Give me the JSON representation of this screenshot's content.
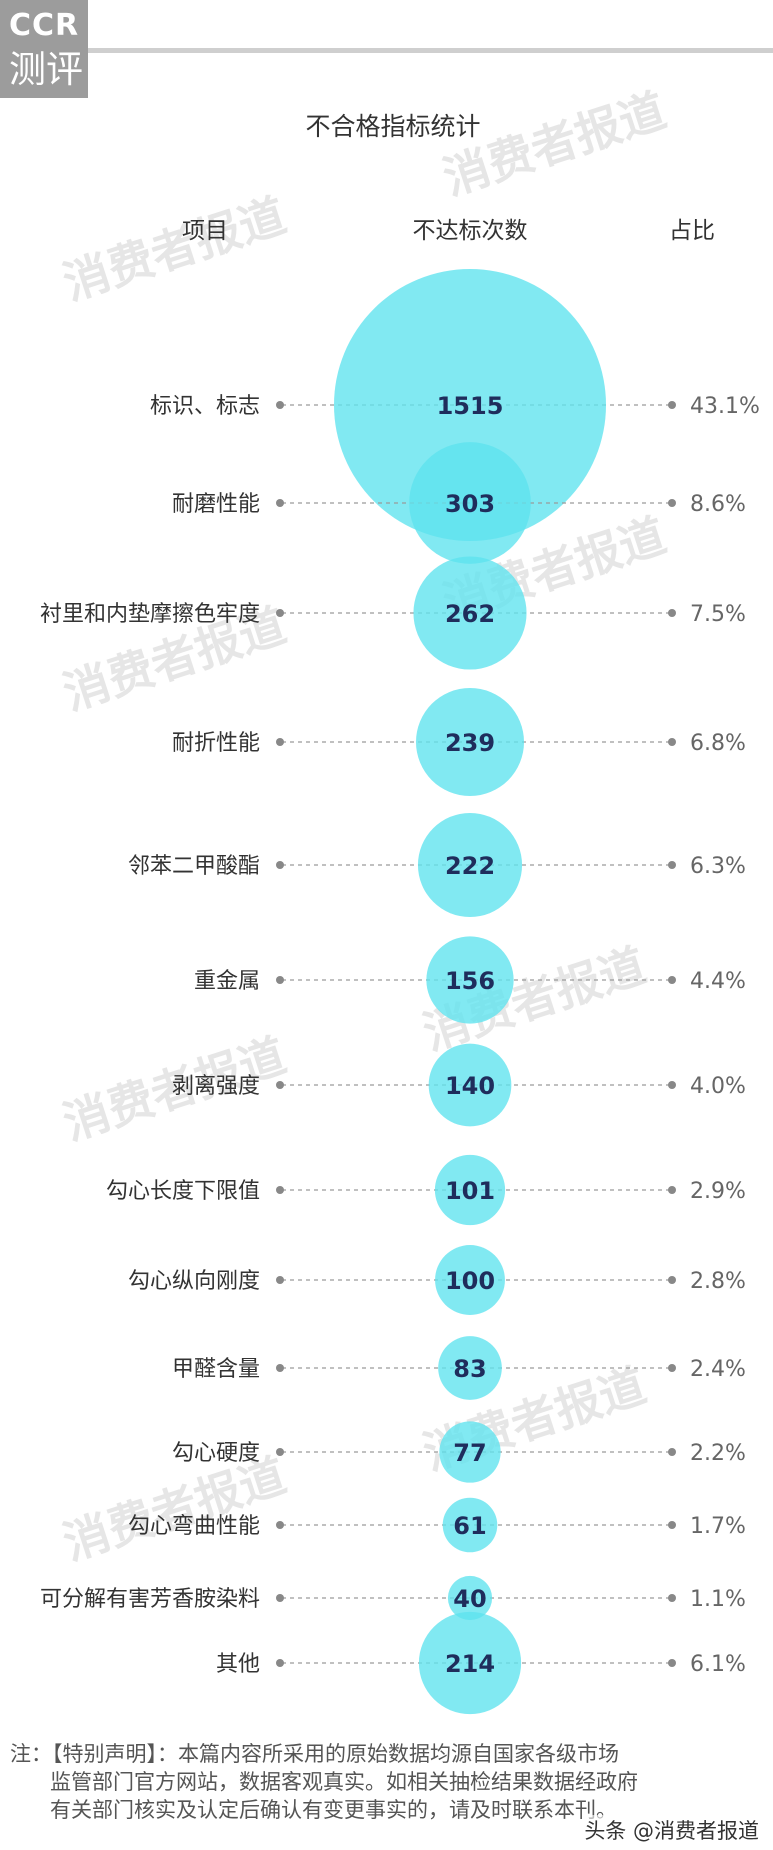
{
  "brand": {
    "logo_line1": "CCR",
    "logo_line2": "测评"
  },
  "watermark": "消费者报道",
  "chart_data": {
    "type": "bubble",
    "title": "不合格指标统计",
    "columns": {
      "item": "项目",
      "count": "不达标次数",
      "share": "占比"
    },
    "categories": [
      "标识、标志",
      "耐磨性能",
      "衬里和内垫摩擦色牢度",
      "耐折性能",
      "邻苯二甲酸酯",
      "重金属",
      "剥离强度",
      "勾心长度下限值",
      "勾心纵向刚度",
      "甲醛含量",
      "勾心硬度",
      "勾心弯曲性能",
      "可分解有害芳香胺染料",
      "其他"
    ],
    "values": [
      1515,
      303,
      262,
      239,
      222,
      156,
      140,
      101,
      100,
      83,
      77,
      61,
      40,
      214
    ],
    "shares": [
      "43.1%",
      "8.6%",
      "7.5%",
      "6.8%",
      "6.3%",
      "4.4%",
      "4.0%",
      "2.9%",
      "2.8%",
      "2.4%",
      "2.2%",
      "1.7%",
      "1.1%",
      "6.1%"
    ],
    "colors": {
      "bubble": "#5ee3ee",
      "value_text": "#1f2d5c",
      "dots": "#888888"
    }
  },
  "note": {
    "line1": "注：【特别声明】：本篇内容所采用的原始数据均源自国家各级市场",
    "line2": "监管部门官方网站，数据客观真实。如相关抽检结果数据经政府",
    "line3": "有关部门核实及认定后确认有变更事实的，请及时联系本刊。"
  },
  "source": "头条 @消费者报道"
}
